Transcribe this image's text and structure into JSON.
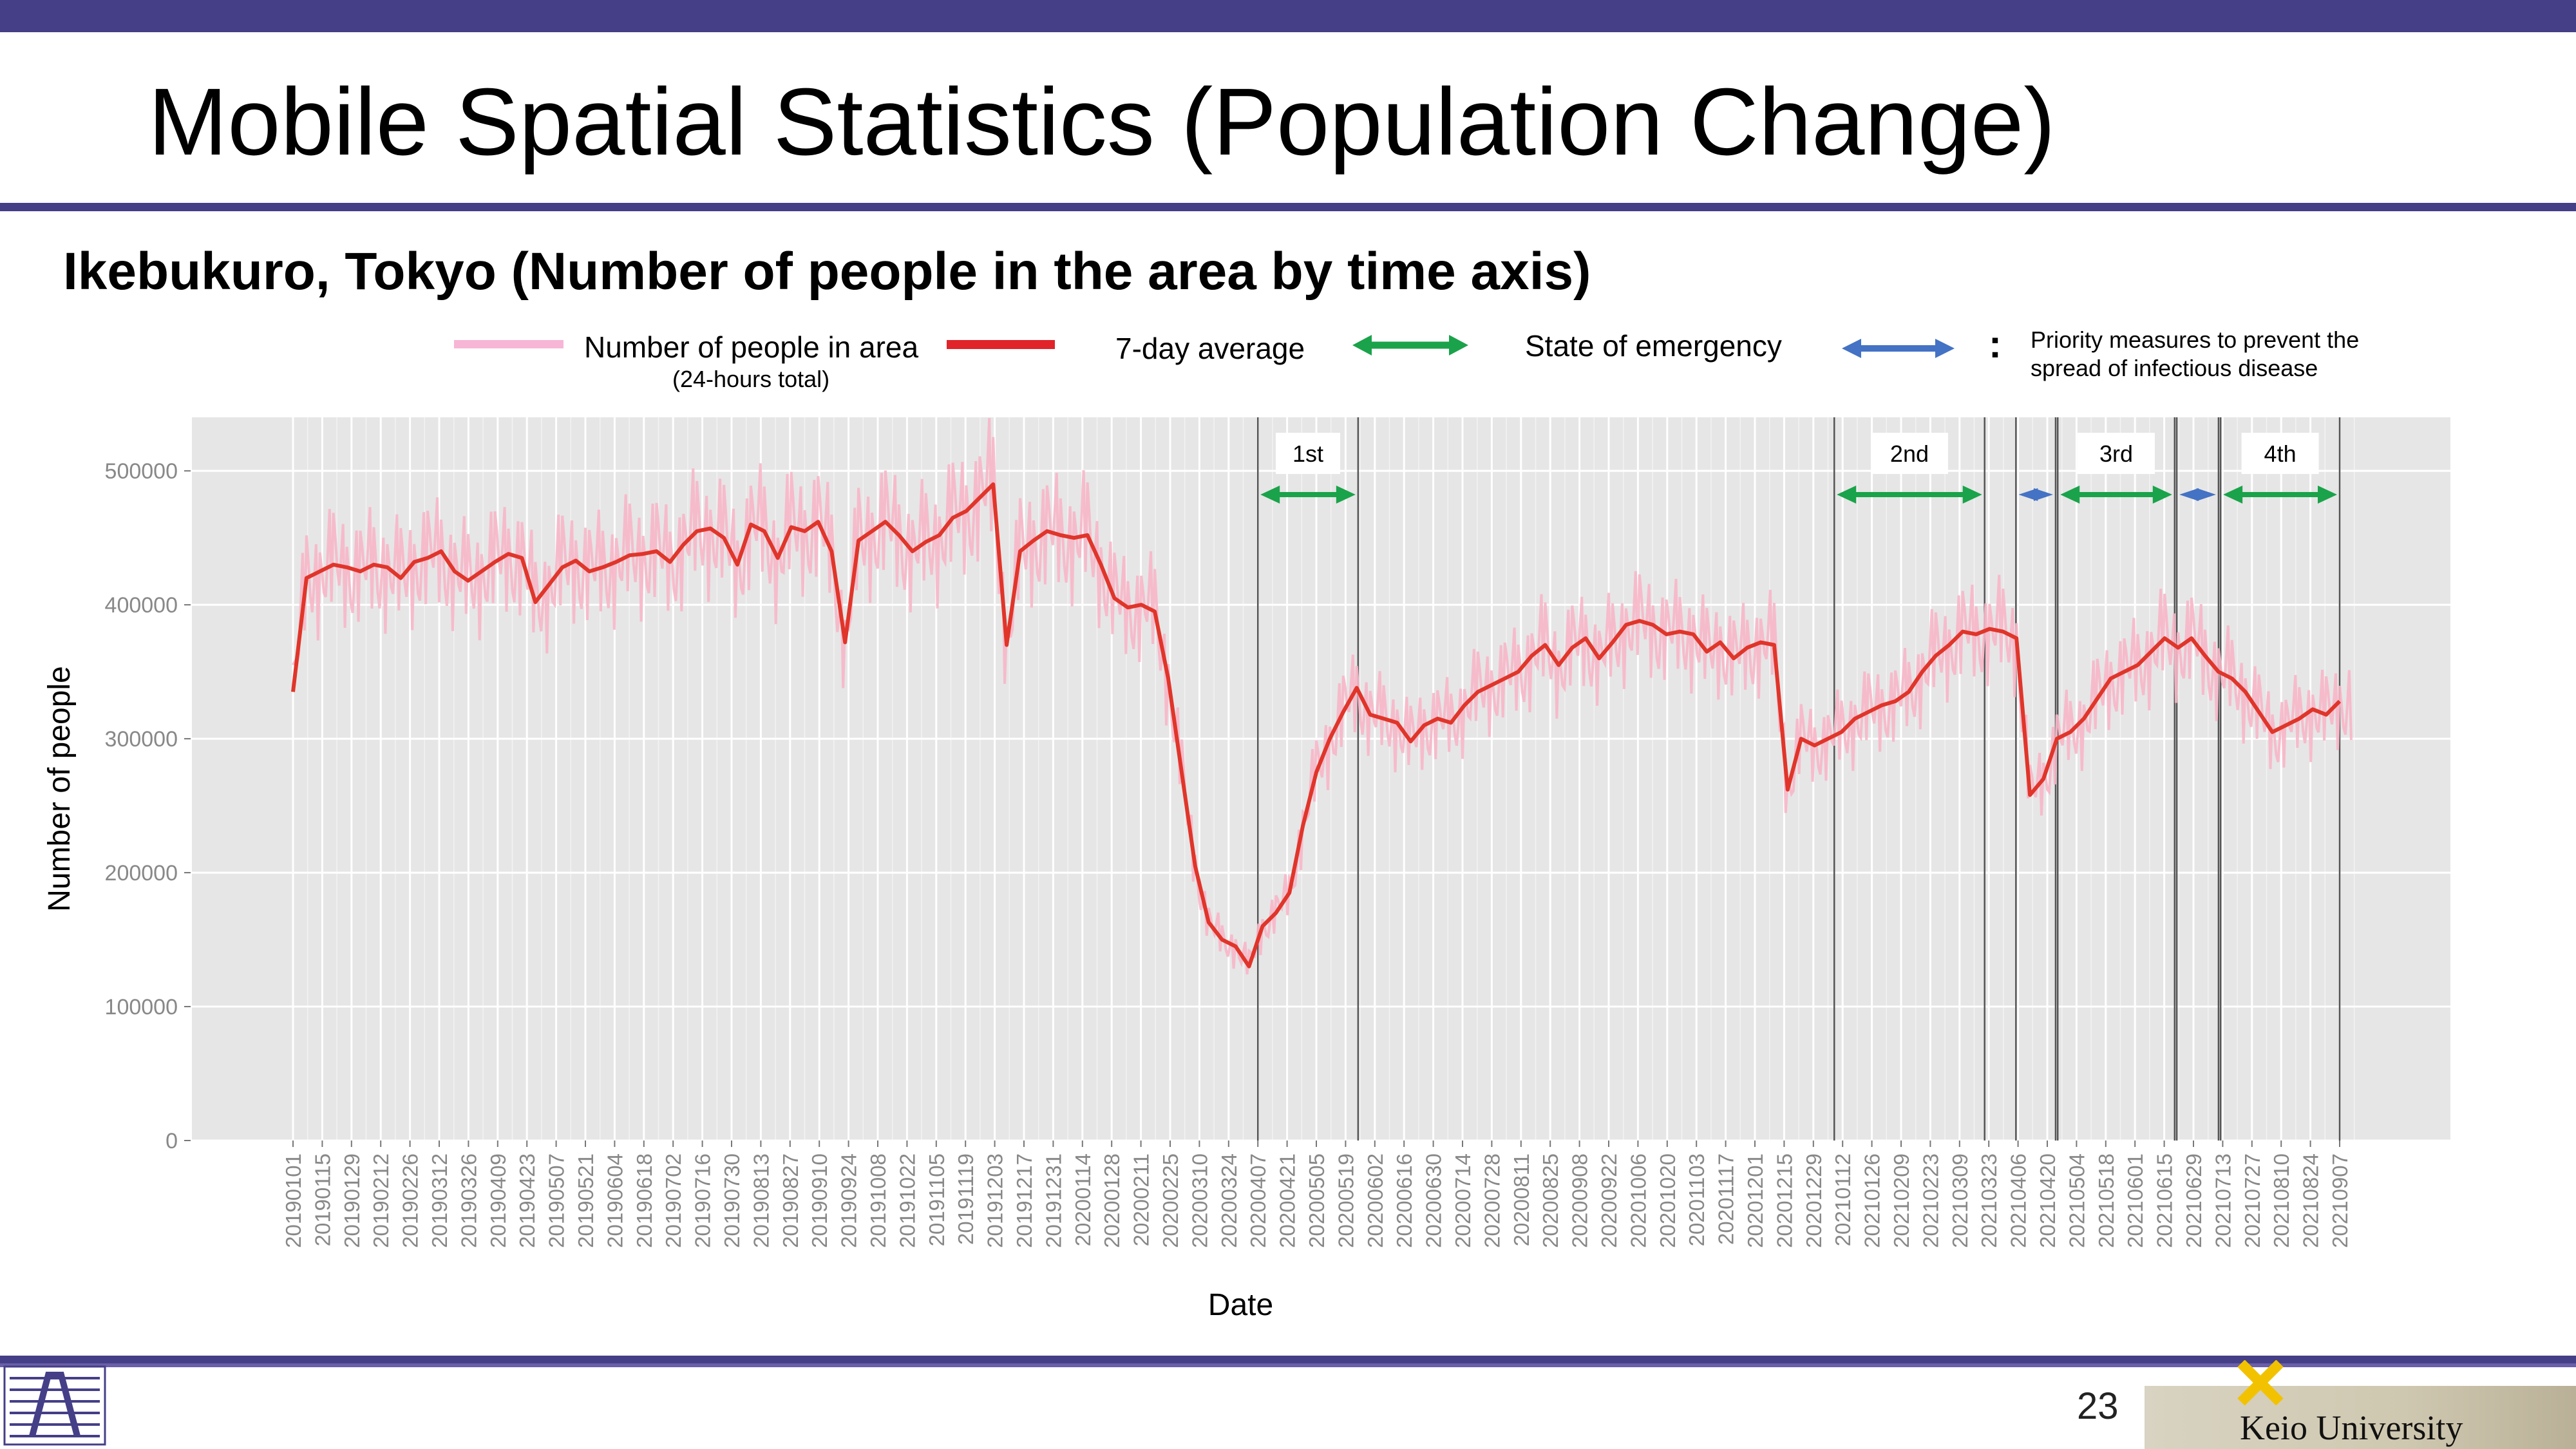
{
  "slide": {
    "title": "Mobile Spatial Statistics (Population Change)",
    "subtitle": "Ikebukuro, Tokyo (Number of people in the area by time axis)",
    "page_number": "23",
    "institution": "Keio University",
    "brand_colors": {
      "bar": "#453f88",
      "raw_line": "#f7b6c8",
      "avg_line": "#e0352a",
      "emergency": "#1aa34a",
      "priority": "#4472c4",
      "plot_bg": "#e6e6e6"
    }
  },
  "legend": {
    "raw_label": "Number of people in area",
    "raw_sublabel": "(24-hours total)",
    "avg_label": "7-day average",
    "emergency_label": "State of emergency",
    "priority_colon": ":",
    "priority_label": "Priority measures to prevent the spread of infectious disease"
  },
  "chart_data": {
    "type": "line",
    "xlabel": "Date",
    "ylabel": "Number of people",
    "ylim": [
      0,
      540000
    ],
    "yticks": [
      "0",
      "100000",
      "200000",
      "300000",
      "400000",
      "500000"
    ],
    "grid": true,
    "x_tick_labels": [
      "20190101",
      "20190115",
      "20190129",
      "20190212",
      "20190226",
      "20190312",
      "20190326",
      "20190409",
      "20190423",
      "20190507",
      "20190521",
      "20190604",
      "20190618",
      "20190702",
      "20190716",
      "20190730",
      "20190813",
      "20190827",
      "20190910",
      "20190924",
      "20191008",
      "20191022",
      "20191105",
      "20191119",
      "20191203",
      "20191217",
      "20191231",
      "20200114",
      "20200128",
      "20200211",
      "20200225",
      "20200310",
      "20200324",
      "20200407",
      "20200421",
      "20200505",
      "20200519",
      "20200602",
      "20200616",
      "20200630",
      "20200714",
      "20200728",
      "20200811",
      "20200825",
      "20200908",
      "20200922",
      "20201006",
      "20201020",
      "20201103",
      "20201117",
      "20201201",
      "20201215",
      "20201229",
      "20210112",
      "20210126",
      "20210209",
      "20210223",
      "20210309",
      "20210323",
      "20210406",
      "20210420",
      "20210504",
      "20210518",
      "20210601",
      "20210615",
      "20210629",
      "20210713",
      "20210727",
      "20210810",
      "20210824",
      "20210907"
    ],
    "series": [
      {
        "name": "7-day average",
        "values": [
          335000,
          420000,
          425000,
          430000,
          428000,
          425000,
          430000,
          428000,
          420000,
          432000,
          435000,
          440000,
          425000,
          418000,
          425000,
          432000,
          438000,
          435000,
          402000,
          415000,
          428000,
          433000,
          425000,
          428000,
          432000,
          437000,
          438000,
          440000,
          432000,
          445000,
          455000,
          457000,
          450000,
          430000,
          460000,
          455000,
          435000,
          458000,
          455000,
          462000,
          440000,
          372000,
          448000,
          455000,
          462000,
          452000,
          440000,
          447000,
          452000,
          465000,
          470000,
          480000,
          490000,
          370000,
          440000,
          448000,
          455000,
          452000,
          450000,
          452000,
          430000,
          405000,
          398000,
          400000,
          395000,
          345000,
          275000,
          205000,
          163000,
          150000,
          145000,
          130000,
          160000,
          170000,
          185000,
          235000,
          275000,
          300000,
          320000,
          338000,
          318000,
          315000,
          312000,
          298000,
          310000,
          315000,
          312000,
          325000,
          335000,
          340000,
          345000,
          350000,
          362000,
          370000,
          355000,
          368000,
          375000,
          360000,
          372000,
          385000,
          388000,
          385000,
          378000,
          380000,
          378000,
          365000,
          372000,
          360000,
          368000,
          372000,
          370000,
          262000,
          300000,
          295000,
          300000,
          305000,
          315000,
          320000,
          325000,
          328000,
          335000,
          350000,
          362000,
          370000,
          380000,
          378000,
          382000,
          380000,
          375000,
          258000,
          270000,
          300000,
          305000,
          315000,
          330000,
          345000,
          350000,
          355000,
          365000,
          375000,
          368000,
          375000,
          362000,
          350000,
          345000,
          335000,
          320000,
          305000,
          310000,
          315000,
          322000,
          318000,
          328000
        ]
      },
      {
        "name": "Number of people in area",
        "note": "daily values fluctuate around the 7-day average; min ~110000 in May 2020, max ~560000 in Dec 2019"
      }
    ],
    "periods": [
      {
        "label": "1st",
        "type": "State of emergency",
        "start": "20200407",
        "end": "20200525"
      },
      {
        "label": "2nd",
        "type": "State of emergency",
        "start": "20210108",
        "end": "20210321"
      },
      {
        "label": "",
        "type": "Priority measures",
        "start": "20210405",
        "end": "20210424"
      },
      {
        "label": "3rd",
        "type": "State of emergency",
        "start": "20210425",
        "end": "20210620"
      },
      {
        "label": "",
        "type": "Priority measures",
        "start": "20210621",
        "end": "20210711"
      },
      {
        "label": "4th",
        "type": "State of emergency",
        "start": "20210712",
        "end": "20210912"
      }
    ]
  }
}
